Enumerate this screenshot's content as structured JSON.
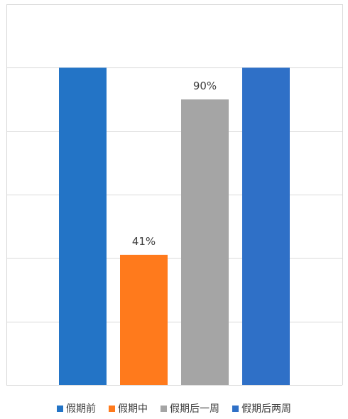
{
  "chart_data": {
    "type": "bar",
    "categories": [
      "假期前",
      "假期中",
      "假期后一周",
      "假期后两周"
    ],
    "values": [
      100,
      41,
      90,
      100
    ],
    "data_labels": [
      "",
      "41%",
      "90%",
      ""
    ],
    "ylim": [
      0,
      120
    ],
    "grid": true,
    "legend": "bottom",
    "colors": [
      "#2374C6",
      "#FF7A1C",
      "#A5A5A5",
      "#2F70C7"
    ],
    "gridline_color": "#D9D9D9"
  }
}
